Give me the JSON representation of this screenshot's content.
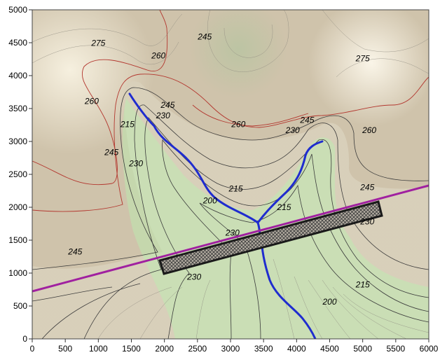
{
  "map": {
    "x_axis": {
      "range": [
        0,
        6000
      ],
      "ticks": [
        "0",
        "500",
        "1000",
        "1500",
        "2000",
        "2500",
        "3000",
        "3500",
        "4000",
        "4500",
        "5000",
        "5500",
        "6000"
      ]
    },
    "y_axis": {
      "range": [
        0,
        5000
      ],
      "ticks": [
        "0",
        "500",
        "1000",
        "1500",
        "2000",
        "2500",
        "3000",
        "3500",
        "4000",
        "4500",
        "5000"
      ]
    },
    "contour_labels": [
      {
        "text": "275",
        "x": 1000,
        "y": 4450
      },
      {
        "text": "260",
        "x": 1910,
        "y": 4260
      },
      {
        "text": "245",
        "x": 2610,
        "y": 4550
      },
      {
        "text": "275",
        "x": 5000,
        "y": 4220
      },
      {
        "text": "260",
        "x": 900,
        "y": 3570
      },
      {
        "text": "245",
        "x": 2050,
        "y": 3510
      },
      {
        "text": "230",
        "x": 1980,
        "y": 3350
      },
      {
        "text": "215",
        "x": 1440,
        "y": 3220
      },
      {
        "text": "260",
        "x": 3120,
        "y": 3220
      },
      {
        "text": "245",
        "x": 4160,
        "y": 3280
      },
      {
        "text": "230",
        "x": 3940,
        "y": 3130
      },
      {
        "text": "260",
        "x": 5100,
        "y": 3130
      },
      {
        "text": "245",
        "x": 1200,
        "y": 2790
      },
      {
        "text": "230",
        "x": 1570,
        "y": 2620
      },
      {
        "text": "215",
        "x": 3080,
        "y": 2240
      },
      {
        "text": "200",
        "x": 2690,
        "y": 2060
      },
      {
        "text": "215",
        "x": 3810,
        "y": 1960
      },
      {
        "text": "245",
        "x": 5070,
        "y": 2260
      },
      {
        "text": "230",
        "x": 5070,
        "y": 1740
      },
      {
        "text": "230",
        "x": 3030,
        "y": 1570
      },
      {
        "text": "245",
        "x": 650,
        "y": 1280
      },
      {
        "text": "230",
        "x": 2450,
        "y": 900
      },
      {
        "text": "215",
        "x": 5000,
        "y": 780
      },
      {
        "text": "200",
        "x": 4500,
        "y": 520
      }
    ],
    "colors": {
      "high_terrain": "#f4ecd8",
      "mid_terrain": "#cbbfa5",
      "low_valley": "#c9f7c6",
      "valley_floor": "#a9f2a4",
      "contour_high": "#b3372f",
      "contour_low": "#2e2e2e",
      "river": "#1f2ccf",
      "line": "#a020a0",
      "structure_fill": "#8a8378",
      "structure_border": "#1a1a1a"
    },
    "features": {
      "river": "blue-stream",
      "transect_line": "purple-line",
      "structure": "hatched-rectangle"
    }
  }
}
